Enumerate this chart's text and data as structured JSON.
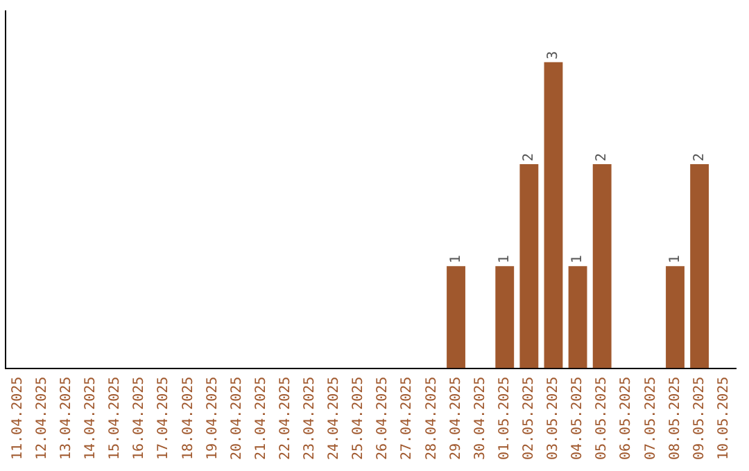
{
  "chart_data": {
    "type": "bar",
    "categories": [
      "11.04.2025",
      "12.04.2025",
      "13.04.2025",
      "14.04.2025",
      "15.04.2025",
      "16.04.2025",
      "17.04.2025",
      "18.04.2025",
      "19.04.2025",
      "20.04.2025",
      "21.04.2025",
      "22.04.2025",
      "23.04.2025",
      "24.04.2025",
      "25.04.2025",
      "26.04.2025",
      "27.04.2025",
      "28.04.2025",
      "29.04.2025",
      "30.04.2025",
      "01.05.2025",
      "02.05.2025",
      "03.05.2025",
      "04.05.2025",
      "05.05.2025",
      "06.05.2025",
      "07.05.2025",
      "08.05.2025",
      "09.05.2025",
      "10.05.2025"
    ],
    "values": [
      null,
      null,
      null,
      null,
      null,
      null,
      null,
      null,
      null,
      null,
      null,
      null,
      null,
      null,
      null,
      null,
      null,
      null,
      1,
      null,
      1,
      2,
      3,
      1,
      2,
      null,
      null,
      1,
      2,
      null
    ],
    "data_labels": true,
    "color": "#a0582d",
    "grid": false,
    "legend": false,
    "tick_labels": "x"
  }
}
